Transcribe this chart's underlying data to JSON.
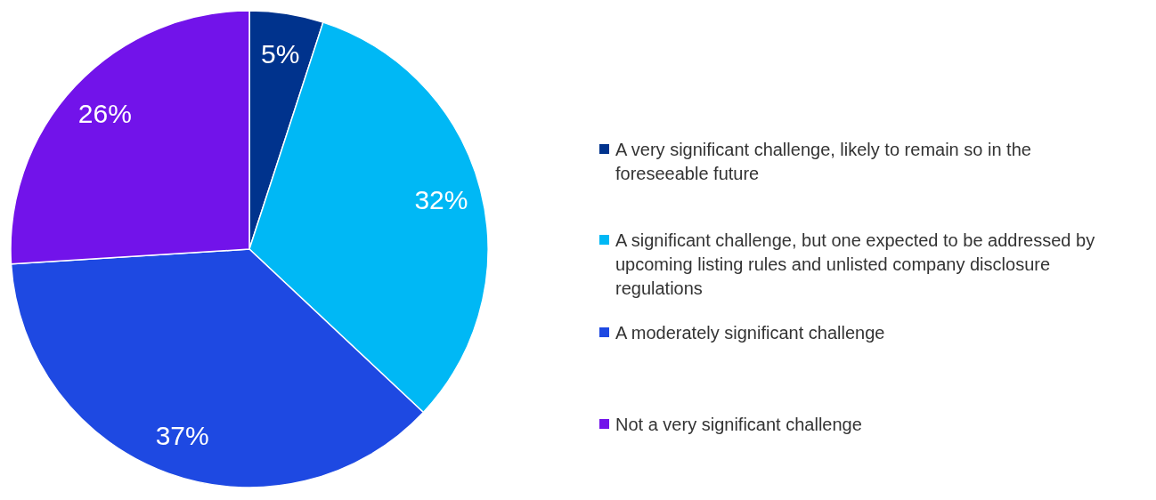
{
  "chart_data": {
    "type": "pie",
    "categories": [
      "A very significant challenge, likely to remain so in the foreseeable future",
      "A significant challenge, but one expected to be addressed by upcoming listing rules and unlisted company disclosure regulations",
      "A moderately significant challenge",
      "Not a very significant challenge"
    ],
    "values": [
      5,
      32,
      37,
      26
    ],
    "colors": [
      "#00338d",
      "#00b8f5",
      "#1e49e2",
      "#7213ea"
    ],
    "value_labels": [
      "5%",
      "32%",
      "37%",
      "26%"
    ],
    "legend": "right"
  }
}
